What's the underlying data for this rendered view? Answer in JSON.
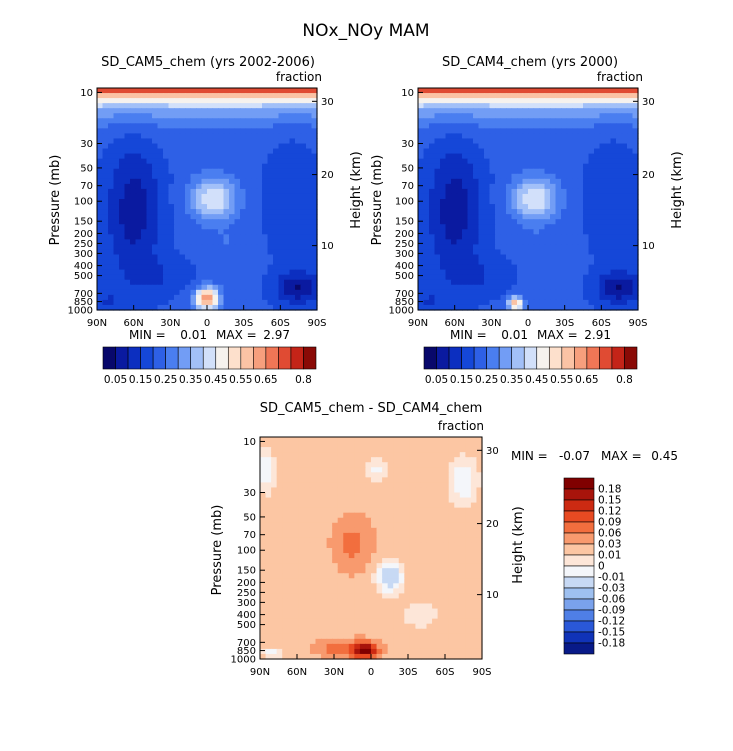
{
  "main_title": "NOx_NOy MAM",
  "chart_data": [
    {
      "type": "heatmap",
      "title": "SD_CAM5_chem (yrs 2002-2006)",
      "units": "fraction",
      "ylabel": "Pressure (mb)",
      "ylabel_right": "Height (km)",
      "x_ticks": [
        "90N",
        "60N",
        "30N",
        "0",
        "30S",
        "60S",
        "90S"
      ],
      "y_ticks": [
        "10",
        "30",
        "50",
        "70",
        "100",
        "150",
        "200",
        "250",
        "300",
        "400",
        "500",
        "700",
        "850",
        "1000"
      ],
      "y_right_ticks": [
        "30",
        "20",
        "10"
      ],
      "min_label": "MIN =",
      "min_value": "0.01",
      "max_label": "MAX =",
      "max_value": "2.97",
      "colorbar_labels": [
        "0.05",
        "0.15",
        "0.25",
        "0.35",
        "0.45",
        "0.55",
        "0.65",
        "0.8"
      ]
    },
    {
      "type": "heatmap",
      "title": "SD_CAM4_chem (yrs 2000)",
      "units": "fraction",
      "ylabel": "Pressure (mb)",
      "ylabel_right": "Height (km)",
      "x_ticks": [
        "90N",
        "60N",
        "30N",
        "0",
        "30S",
        "60S",
        "90S"
      ],
      "y_ticks": [
        "10",
        "30",
        "50",
        "70",
        "100",
        "150",
        "200",
        "250",
        "300",
        "400",
        "500",
        "700",
        "850",
        "1000"
      ],
      "y_right_ticks": [
        "30",
        "20",
        "10"
      ],
      "min_label": "MIN =",
      "min_value": "0.01",
      "max_label": "MAX =",
      "max_value": "2.91",
      "colorbar_labels": [
        "0.05",
        "0.15",
        "0.25",
        "0.35",
        "0.45",
        "0.55",
        "0.65",
        "0.8"
      ]
    },
    {
      "type": "heatmap",
      "title": "SD_CAM5_chem - SD_CAM4_chem",
      "units": "fraction",
      "ylabel": "Pressure (mb)",
      "ylabel_right": "Height (km)",
      "x_ticks": [
        "90N",
        "60N",
        "30N",
        "0",
        "30S",
        "60S",
        "90S"
      ],
      "y_ticks": [
        "10",
        "30",
        "50",
        "70",
        "100",
        "150",
        "200",
        "250",
        "300",
        "400",
        "500",
        "700",
        "850",
        "1000"
      ],
      "y_right_ticks": [
        "30",
        "20",
        "10"
      ],
      "min_label": "MIN =",
      "min_value": "-0.07",
      "max_label": "MAX =",
      "max_value": "0.45",
      "colorbar_labels": [
        "0.18",
        "0.15",
        "0.12",
        "0.09",
        "0.06",
        "0.03",
        "0.01",
        "0",
        "-0.01",
        "-0.03",
        "-0.06",
        "-0.09",
        "-0.12",
        "-0.15",
        "-0.18"
      ]
    }
  ],
  "colors": {
    "abs_scale": [
      "#08086b",
      "#0a1aa0",
      "#0c2fc0",
      "#1547d8",
      "#2e60e6",
      "#4a7ef0",
      "#729df5",
      "#a2c0f8",
      "#d2e0fa",
      "#f6f2ee",
      "#fde0cc",
      "#fbc3a5",
      "#f79f7d",
      "#f07656",
      "#e04b33",
      "#c42418",
      "#8a0a06"
    ],
    "diff_scale": [
      "#800000",
      "#a8140b",
      "#cc2a12",
      "#e84a22",
      "#f26e3e",
      "#f89a6e",
      "#fcc6a3",
      "#fde6d8",
      "#f4f6fa",
      "#c7d9f4",
      "#9ec0f0",
      "#7aa2ec",
      "#4f7fe6",
      "#2a58d8",
      "#1033b8",
      "#081a88"
    ]
  }
}
